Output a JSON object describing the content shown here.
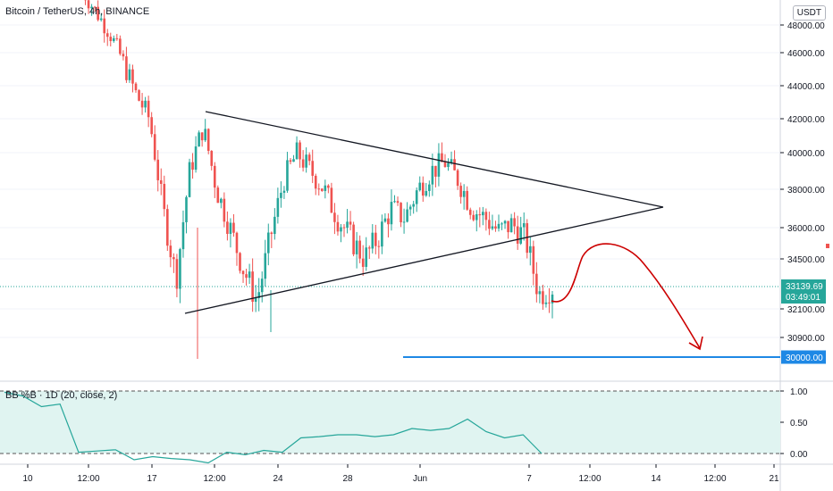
{
  "header": {
    "title": "Bitcoin / TetherUS, 4h, BINANCE",
    "currency_button": "USDT"
  },
  "indicator": {
    "label": "BB %B · 1D (20, close, 2)"
  },
  "colors": {
    "up": "#26a69a",
    "down": "#ef5350",
    "target_line": "#1e88e5",
    "projection": "#cc0000",
    "bb_fill": "#e0f4f1",
    "bb_line": "#26a69a"
  },
  "chart_data": [
    {
      "type": "candlestick",
      "yticks": [
        48000,
        46000,
        44000,
        42000,
        40000,
        38000,
        36000,
        34500,
        32100,
        30900
      ],
      "ytick_labels": [
        "48000.00",
        "46000.00",
        "44000.00",
        "42000.00",
        "40000.00",
        "38000.00",
        "36000.00",
        "34500.00",
        "32100.00",
        "30900.00"
      ],
      "last_price_label": "33139.69",
      "countdown_label": "03:49:01",
      "target_label": "30000.00",
      "target_value": 30000,
      "xtick_labels": [
        "10",
        "12:00",
        "17",
        "12:00",
        "24",
        "28",
        "Jun",
        "7",
        "12:00",
        "14",
        "12:00",
        "21"
      ],
      "candles_close_approx": [
        50500,
        49000,
        47500,
        45500,
        43500,
        42000,
        37000,
        33500,
        39000,
        41500,
        38000,
        36000,
        34000,
        32500,
        35500,
        38500,
        40000,
        39000,
        38000,
        36500,
        35500,
        34500,
        35500,
        37000,
        36500,
        38000,
        39000,
        39500,
        38500,
        37000,
        36500,
        35800,
        36200,
        35500,
        32800,
        33140
      ],
      "triangle_upper": [
        [
          42500,
          "May 19"
        ],
        [
          37000,
          "Jun 14"
        ]
      ],
      "triangle_lower": [
        [
          31500,
          "May 19"
        ],
        [
          37000,
          "Jun 14"
        ]
      ]
    },
    {
      "type": "line",
      "name": "BB %B",
      "yticks": [
        1.0,
        0.5,
        0.0
      ],
      "ytick_labels": [
        "1.00",
        "0.50",
        "0.00"
      ],
      "values": [
        0.98,
        0.92,
        0.75,
        0.79,
        0.02,
        0.04,
        0.06,
        -0.1,
        -0.05,
        -0.08,
        -0.1,
        -0.15,
        0.02,
        -0.02,
        0.05,
        0.02,
        0.25,
        0.27,
        0.3,
        0.3,
        0.27,
        0.3,
        0.4,
        0.37,
        0.4,
        0.55,
        0.35,
        0.25,
        0.3,
        0.0
      ]
    }
  ]
}
